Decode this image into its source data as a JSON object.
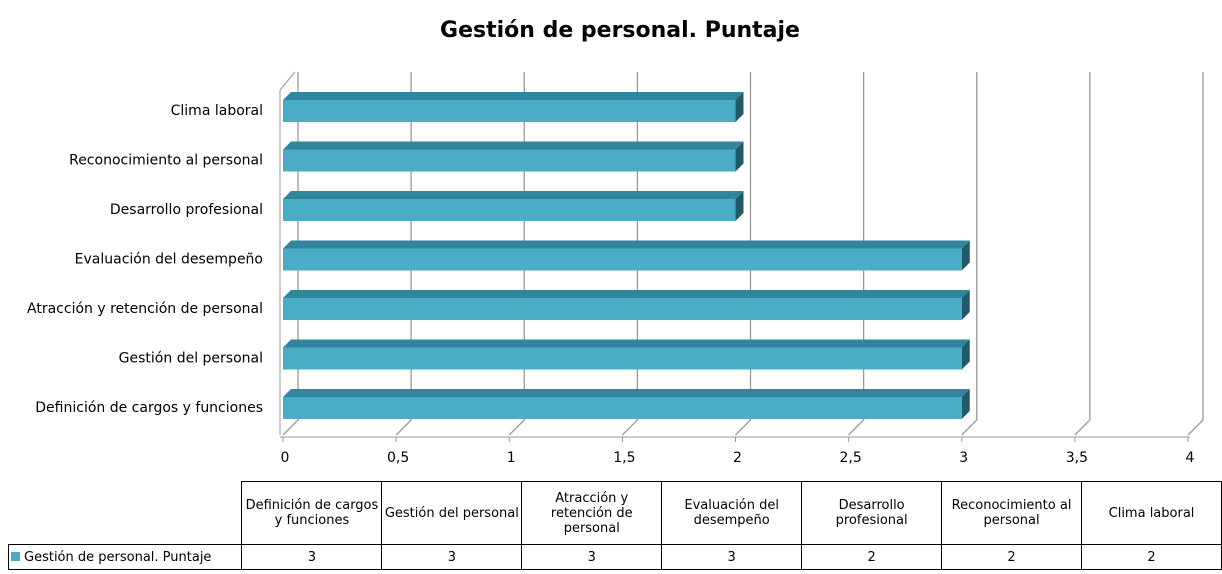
{
  "chart_data": {
    "type": "bar3d",
    "title": "Gestión de personal. Puntaje",
    "categories": [
      "Definición de cargos y funciones",
      "Gestión del personal",
      "Atracción y retención de personal",
      "Evaluación del desempeño",
      "Desarrollo profesional",
      "Reconocimiento al personal",
      "Clima laboral"
    ],
    "series": [
      {
        "name": "Gestión de personal. Puntaje",
        "color": "#4bacc6",
        "values": [
          3,
          3,
          3,
          3,
          2,
          2,
          2
        ]
      }
    ],
    "xlim": [
      0,
      4
    ],
    "xticks": [
      0,
      {
        "value": 0.5,
        "label": "0,5"
      },
      1,
      {
        "value": 1.5,
        "label": "1,5"
      },
      2,
      {
        "value": 2.5,
        "label": "2,5"
      },
      3,
      {
        "value": 3.5,
        "label": "3,5"
      },
      4
    ],
    "grid": true,
    "data_table": true
  }
}
